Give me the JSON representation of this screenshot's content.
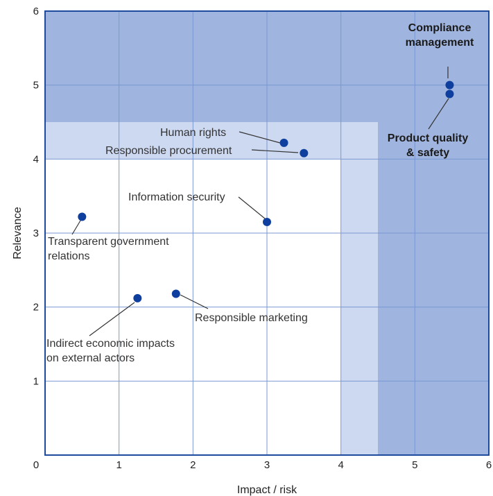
{
  "chart_data": {
    "type": "scatter",
    "xlabel": "Impact / risk",
    "ylabel": "Relevance",
    "xlim": [
      0,
      6
    ],
    "ylim": [
      0,
      6
    ],
    "x_ticks": [
      "0",
      "1",
      "2",
      "3",
      "4",
      "5",
      "6"
    ],
    "y_ticks": [
      "1",
      "2",
      "3",
      "4",
      "5",
      "6"
    ],
    "grid": true,
    "zones": [
      {
        "name": "high",
        "color": "#9fb4de"
      },
      {
        "name": "medium",
        "color": "#cdd9f1"
      },
      {
        "name": "low",
        "color": "#ffffff"
      }
    ],
    "zone_thresholds": {
      "high_x": 4.5,
      "high_y": 4.5,
      "medium_x": 4.0,
      "medium_y": 4.0
    },
    "point_color": "#0f3f9e",
    "points": [
      {
        "label": "Compliance management",
        "lines": [
          "Compliance",
          "management"
        ],
        "x": 5.47,
        "y": 5.0,
        "bold": true
      },
      {
        "label": "Product quality & safety",
        "lines": [
          "Product quality",
          "& safety"
        ],
        "x": 5.47,
        "y": 4.88,
        "bold": true
      },
      {
        "label": "Human rights",
        "lines": [
          "Human rights"
        ],
        "x": 3.23,
        "y": 4.22,
        "bold": false
      },
      {
        "label": "Responsible procurement",
        "lines": [
          "Responsible procurement"
        ],
        "x": 3.5,
        "y": 4.08,
        "bold": false
      },
      {
        "label": "Information security",
        "lines": [
          "Information security"
        ],
        "x": 3.0,
        "y": 3.15,
        "bold": false
      },
      {
        "label": "Transparent government relations",
        "lines": [
          "Transparent government",
          "relations"
        ],
        "x": 0.5,
        "y": 3.22,
        "bold": false
      },
      {
        "label": "Responsible marketing",
        "lines": [
          "Responsible marketing"
        ],
        "x": 1.77,
        "y": 2.18,
        "bold": false
      },
      {
        "label": "Indirect economic impacts on external actors",
        "lines": [
          "Indirect economic impacts",
          "on external actors"
        ],
        "x": 1.25,
        "y": 2.12,
        "bold": false
      }
    ]
  }
}
